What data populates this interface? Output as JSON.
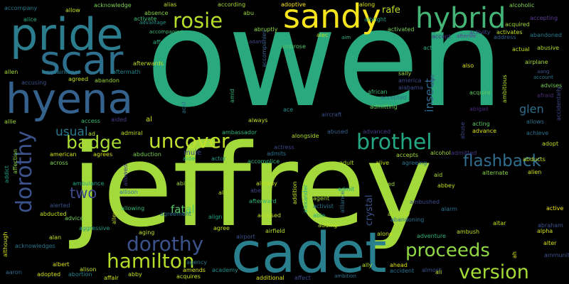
{
  "words": [
    {
      "text": "owen",
      "color": "#2aa97e"
    },
    {
      "text": "jeffrey",
      "color": "#a3d93a"
    },
    {
      "text": "cadet",
      "color": "#2a7f8e"
    },
    {
      "text": "pride",
      "color": "#2b7d8e"
    },
    {
      "text": "scar",
      "color": "#2f6f8e"
    },
    {
      "text": "hyena",
      "color": "#35618d"
    },
    {
      "text": "sandy",
      "color": "#f6e41d"
    },
    {
      "text": "hybrid",
      "color": "#44b577"
    },
    {
      "text": "rosie",
      "color": "#b5de2b"
    },
    {
      "text": "uncover",
      "color": "#bfe02c"
    },
    {
      "text": "brothel",
      "color": "#23a883"
    },
    {
      "text": "dorothy",
      "color": "#3b528b"
    },
    {
      "text": "hamilton",
      "color": "#b2dc29"
    },
    {
      "text": "proceeds",
      "color": "#8fd744"
    },
    {
      "text": "version",
      "color": "#a5db36"
    },
    {
      "text": "flashback",
      "color": "#2f6e8e"
    },
    {
      "text": "badge",
      "color": "#a8db34"
    },
    {
      "text": "two",
      "color": "#3e4a89"
    },
    {
      "text": "usual",
      "color": "#2a788e"
    },
    {
      "text": "fatal",
      "color": "#55c667"
    },
    {
      "text": "insect",
      "color": "#31688e"
    },
    {
      "text": "glen",
      "color": "#2f6d8e"
    },
    {
      "text": "rafe",
      "color": "#c2df23"
    },
    {
      "text": "sally",
      "color": "#93d741"
    },
    {
      "text": "crystal",
      "color": "#3b528b"
    },
    {
      "text": "accompany",
      "color": "#29798e"
    },
    {
      "text": "allow",
      "color": "#c8e020"
    },
    {
      "text": "acknowledge",
      "color": "#7ad151"
    },
    {
      "text": "alias",
      "color": "#b8de29"
    },
    {
      "text": "according",
      "color": "#a8db34"
    },
    {
      "text": "adoptive",
      "color": "#fde725"
    },
    {
      "text": "along",
      "color": "#d8e219"
    },
    {
      "text": "alcoholic",
      "color": "#7fd34e"
    },
    {
      "text": "absence",
      "color": "#8bd646"
    },
    {
      "text": "abu",
      "color": "#9dd93b"
    },
    {
      "text": "albright",
      "color": "#1fa088"
    },
    {
      "text": "alice",
      "color": "#26ad81"
    },
    {
      "text": "advantage",
      "color": "#1f988b"
    },
    {
      "text": "activate",
      "color": "#3cbb75"
    },
    {
      "text": "accompanied",
      "color": "#3aba76"
    },
    {
      "text": "abruptly",
      "color": "#8bd646"
    },
    {
      "text": "alec",
      "color": "#b5de2b"
    },
    {
      "text": "aim",
      "color": "#28ae80"
    },
    {
      "text": "activated",
      "color": "#75d054"
    },
    {
      "text": "activity",
      "color": "#3e4c8a"
    },
    {
      "text": "activates",
      "color": "#c5e021"
    },
    {
      "text": "acquired",
      "color": "#a2da37"
    },
    {
      "text": "accept",
      "color": "#46327e"
    },
    {
      "text": "afterlife",
      "color": "#5e3c99"
    },
    {
      "text": "address",
      "color": "#34608d"
    },
    {
      "text": "accepting",
      "color": "#5c3d98"
    },
    {
      "text": "abandoned",
      "color": "#2a788e"
    },
    {
      "text": "afford",
      "color": "#2ab07f"
    },
    {
      "text": "adam",
      "color": "#414487"
    },
    {
      "text": "ambrose",
      "color": "#52c569"
    },
    {
      "text": "act",
      "color": "#27ad81"
    },
    {
      "text": "actual",
      "color": "#c2df23"
    },
    {
      "text": "abusive",
      "color": "#b5de2b"
    },
    {
      "text": "allen",
      "color": "#a0da39"
    },
    {
      "text": "afterwards",
      "color": "#bddf26"
    },
    {
      "text": "acquaintance",
      "color": "#277f8e"
    },
    {
      "text": "aftermath",
      "color": "#26828e"
    },
    {
      "text": "agreed",
      "color": "#c0df25"
    },
    {
      "text": "abandon",
      "color": "#9dd93b"
    },
    {
      "text": "accusing",
      "color": "#3d4e8a"
    },
    {
      "text": "also",
      "color": "#dde318"
    },
    {
      "text": "airplane",
      "color": "#a2da37"
    },
    {
      "text": "aang",
      "color": "#3b528b"
    },
    {
      "text": "account",
      "color": "#29798e"
    },
    {
      "text": "advises",
      "color": "#75d054"
    },
    {
      "text": "afraid",
      "color": "#4c2a75"
    },
    {
      "text": "african",
      "color": "#3dbc74"
    },
    {
      "text": "accepted",
      "color": "#2c738e"
    },
    {
      "text": "admitting",
      "color": "#6ece58"
    },
    {
      "text": "acquire",
      "color": "#60ca60"
    },
    {
      "text": "abigail",
      "color": "#472c7a"
    },
    {
      "text": "ace",
      "color": "#21918c"
    },
    {
      "text": "aircraft",
      "color": "#3a538b"
    },
    {
      "text": "allie",
      "color": "#9fda3a"
    },
    {
      "text": "al",
      "color": "#d0e11c"
    },
    {
      "text": "aided",
      "color": "#433e85"
    },
    {
      "text": "access",
      "color": "#3bbb75"
    },
    {
      "text": "ad",
      "color": "#b8de29"
    },
    {
      "text": "always",
      "color": "#bddf26"
    },
    {
      "text": "acting",
      "color": "#5ac864"
    },
    {
      "text": "advance",
      "color": "#d5e21a"
    },
    {
      "text": "abuse",
      "color": "#3f4889"
    },
    {
      "text": "allows",
      "color": "#2e6f8e"
    },
    {
      "text": "achieve",
      "color": "#2c728e"
    },
    {
      "text": "advanced",
      "color": "#433e85"
    },
    {
      "text": "abused",
      "color": "#34618d"
    },
    {
      "text": "admiral",
      "color": "#c2df23"
    },
    {
      "text": "ambassador",
      "color": "#2fb47c"
    },
    {
      "text": "alongside",
      "color": "#b2dd2d"
    },
    {
      "text": "abduction",
      "color": "#7ad151"
    },
    {
      "text": "aide",
      "color": "#35b779"
    },
    {
      "text": "actor",
      "color": "#1f9a8a"
    },
    {
      "text": "mule",
      "color": "#3e4989"
    },
    {
      "text": "accomplice",
      "color": "#32b67a"
    },
    {
      "text": "actress",
      "color": "#404688"
    },
    {
      "text": "admits",
      "color": "#2d718e"
    },
    {
      "text": "adult",
      "color": "#b0dd2f"
    },
    {
      "text": "alive",
      "color": "#bddf26"
    },
    {
      "text": "agreeing",
      "color": "#2c728e"
    },
    {
      "text": "accepts",
      "color": "#a8db34"
    },
    {
      "text": "alcohol",
      "color": "#9dd93b"
    },
    {
      "text": "admitted",
      "color": "#443983"
    },
    {
      "text": "alternate",
      "color": "#86d549"
    },
    {
      "text": "abducts",
      "color": "#c5e021"
    },
    {
      "text": "adopt",
      "color": "#c0df25"
    },
    {
      "text": "american",
      "color": "#d8e219"
    },
    {
      "text": "agrees",
      "color": "#d0e11c"
    },
    {
      "text": "allowed",
      "color": "#433e85"
    },
    {
      "text": "across",
      "color": "#7fd34e"
    },
    {
      "text": "aid",
      "color": "#a5db36"
    },
    {
      "text": "alien",
      "color": "#d5e21a"
    },
    {
      "text": "affection",
      "color": "#8bd646"
    },
    {
      "text": "addict",
      "color": "#1f9e89"
    },
    {
      "text": "ambulance",
      "color": "#21a685"
    },
    {
      "text": "ability",
      "color": "#a0da39"
    },
    {
      "text": "already",
      "color": "#c2df23"
    },
    {
      "text": "admit",
      "color": "#1fa287"
    },
    {
      "text": "abbey",
      "color": "#c2df23"
    },
    {
      "text": "allison",
      "color": "#2c728e"
    },
    {
      "text": "alert",
      "color": "#b5de2b"
    },
    {
      "text": "abe",
      "color": "#414487"
    },
    {
      "text": "addition",
      "color": "#c5e021"
    },
    {
      "text": "alfred",
      "color": "#9dd93b"
    },
    {
      "text": "ambushed",
      "color": "#3e4a89"
    },
    {
      "text": "alerted",
      "color": "#3b528b"
    },
    {
      "text": "allowing",
      "color": "#3aba76"
    },
    {
      "text": "alley",
      "color": "#c2df23"
    },
    {
      "text": "afterward",
      "color": "#32b67a"
    },
    {
      "text": "agent",
      "color": "#a8db34"
    },
    {
      "text": "activist",
      "color": "#2a768e"
    },
    {
      "text": "alexander",
      "color": "#25ab82"
    },
    {
      "text": "abducted",
      "color": "#c5e021"
    },
    {
      "text": "advice",
      "color": "#75d054"
    },
    {
      "text": "agreement",
      "color": "#2d708e"
    },
    {
      "text": "align",
      "color": "#1fa188"
    },
    {
      "text": "accused",
      "color": "#c8e020"
    },
    {
      "text": "able",
      "color": "#2ab07f"
    },
    {
      "text": "actually",
      "color": "#b2dd2d"
    },
    {
      "text": "alarm",
      "color": "#2c738e"
    },
    {
      "text": "active",
      "color": "#f4e61e"
    },
    {
      "text": "alan",
      "color": "#c8e020"
    },
    {
      "text": "aggressive",
      "color": "#1f9a8a"
    },
    {
      "text": "agree",
      "color": "#c5e021"
    },
    {
      "text": "airport",
      "color": "#3b528b"
    },
    {
      "text": "airfield",
      "color": "#b8de29"
    },
    {
      "text": "adding",
      "color": "#bddf26"
    },
    {
      "text": "abandoning",
      "color": "#2c728e"
    },
    {
      "text": "altar",
      "color": "#c5e021"
    },
    {
      "text": "ambush",
      "color": "#c2df23"
    },
    {
      "text": "abraham",
      "color": "#3b528b"
    },
    {
      "text": "alpha",
      "color": "#d2e21b"
    },
    {
      "text": "although",
      "color": "#d0e11c"
    },
    {
      "text": "acknowledges",
      "color": "#2b758e"
    },
    {
      "text": "aging",
      "color": "#c2df23"
    },
    {
      "text": "alone",
      "color": "#c8e020"
    },
    {
      "text": "adventure",
      "color": "#32b67a"
    },
    {
      "text": "aaron",
      "color": "#31688e"
    },
    {
      "text": "adopted",
      "color": "#d2e21b"
    },
    {
      "text": "albert",
      "color": "#d8e219"
    },
    {
      "text": "alison",
      "color": "#c0df25"
    },
    {
      "text": "abortion",
      "color": "#26828e"
    },
    {
      "text": "agency",
      "color": "#2b758e"
    },
    {
      "text": "amends",
      "color": "#d8e219"
    },
    {
      "text": "academy",
      "color": "#21918c"
    },
    {
      "text": "ally",
      "color": "#b5de2b"
    },
    {
      "text": "ahead",
      "color": "#dae319"
    },
    {
      "text": "accident",
      "color": "#2c728e"
    },
    {
      "text": "almost",
      "color": "#3b528b"
    },
    {
      "text": "ali",
      "color": "#c2df23"
    },
    {
      "text": "affair",
      "color": "#d0e11c"
    },
    {
      "text": "abby",
      "color": "#c5e021"
    },
    {
      "text": "acquires",
      "color": "#c5e021"
    },
    {
      "text": "additional",
      "color": "#d8e219"
    },
    {
      "text": "affect",
      "color": "#3e4a89"
    },
    {
      "text": "ambition",
      "color": "#2c728e"
    },
    {
      "text": "ammunition",
      "color": "#3b528b"
    },
    {
      "text": "alter",
      "color": "#d8e219"
    },
    {
      "text": "ah",
      "color": "#dde318"
    },
    {
      "text": "acid",
      "color": "#2a788e"
    },
    {
      "text": "amid",
      "color": "#35b779"
    },
    {
      "text": "accompanies",
      "color": "#35618d"
    },
    {
      "text": "alliance",
      "color": "#2d708e"
    },
    {
      "text": "ago",
      "color": "#39558c"
    },
    {
      "text": "ambitious",
      "color": "#b5de2b"
    },
    {
      "text": "accidentally",
      "color": "#3f4889"
    },
    {
      "text": "america",
      "color": "#3f4889"
    },
    {
      "text": "alabama",
      "color": "#3e4a89"
    }
  ]
}
